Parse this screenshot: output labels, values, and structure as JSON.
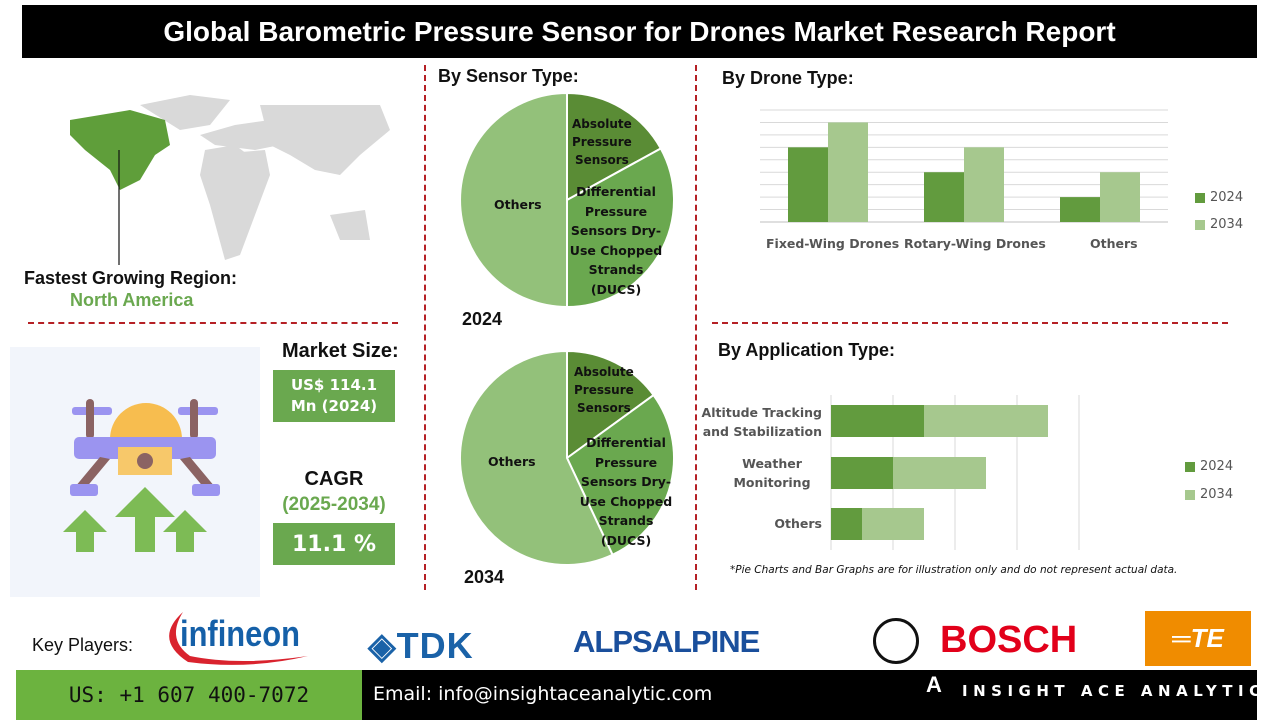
{
  "title": "Global Barometric Pressure Sensor for Drones Market Research Report",
  "region": {
    "label": "Fastest Growing Region:",
    "value": "North America"
  },
  "market_size": {
    "label": "Market Size:",
    "value_line1": "US$ 114.1",
    "value_line2": "Mn (2024)"
  },
  "cagr": {
    "label": "CAGR",
    "period": "(2025-2034)",
    "value": "11.1 %"
  },
  "sections": {
    "sensor_type": "By Sensor Type:",
    "drone_type": "By  Drone Type:",
    "application_type": "By Application Type:"
  },
  "footnote": "*Pie Charts and Bar Graphs are for illustration only and do not represent actual data.",
  "key_players": {
    "label": "Key Players:",
    "logos": [
      "Infineon",
      "TDK",
      "ALPSALPINE",
      "BOSCH",
      "TE connectivity"
    ]
  },
  "footer": {
    "phone": "US: +1 607 400-7072",
    "email": "Email: info@insightaceanalytic.com",
    "brand": "INSIGHT ACE ANALYTIC"
  },
  "colors": {
    "accent_green": "#6aa84f",
    "series_2024": "#629b3e",
    "series_2034": "#a6c88e",
    "divider_red": "#b52025"
  },
  "chart_data": [
    {
      "type": "pie",
      "title": "2024",
      "categories": [
        "Absolute Pressure Sensors",
        "Differential Pressure Sensors Dry-Use Chopped Strands (DUCS)",
        "Others"
      ],
      "values": [
        17,
        33,
        50
      ],
      "colors": [
        "#5a8c35",
        "#6aa84f",
        "#93c17a"
      ]
    },
    {
      "type": "pie",
      "title": "2034",
      "categories": [
        "Absolute Pressure Sensors",
        "Differential Pressure Sensors Dry-Use Chopped Strands (DUCS)",
        "Others"
      ],
      "values": [
        15,
        28,
        57
      ],
      "colors": [
        "#5a8c35",
        "#6aa84f",
        "#93c17a"
      ]
    },
    {
      "type": "bar",
      "categories": [
        "Fixed-Wing Drones",
        "Rotary-Wing Drones",
        "Others"
      ],
      "series": [
        {
          "name": "2024",
          "values": [
            6,
            4,
            2
          ]
        },
        {
          "name": "2034",
          "values": [
            8,
            6,
            4
          ]
        }
      ],
      "ylim": [
        0,
        9
      ],
      "grid": true,
      "legend": "right"
    },
    {
      "type": "bar",
      "orientation": "horizontal",
      "stacked": true,
      "categories": [
        "Altitude Tracking and Stabilization",
        "Weather Monitoring",
        "Others"
      ],
      "series": [
        {
          "name": "2024",
          "values": [
            3,
            2,
            1
          ]
        },
        {
          "name": "2034",
          "values": [
            4,
            3,
            2
          ]
        }
      ],
      "xlim": [
        0,
        8
      ],
      "grid": true,
      "legend": "right"
    }
  ]
}
